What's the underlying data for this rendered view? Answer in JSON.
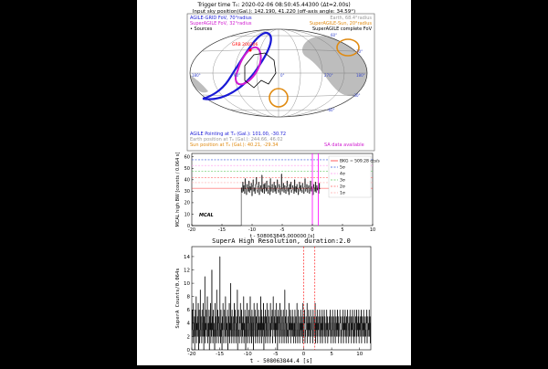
{
  "header": {
    "line1": "Trigger time T₀: 2020-02-06 08:50:45.44300 (Δt=2.00s)",
    "line2": "Input sky position(Gal.): 142.190, 41.220 (off-axis angle: 34.59°)"
  },
  "skymap": {
    "legend_left": [
      {
        "text": "AGILE-GRID FoV, 70°radius",
        "color": "#1a1ad6"
      },
      {
        "text": "SuperAGILE FoV, 32°radius",
        "color": "#d01ad0"
      },
      {
        "text": "• Sources",
        "color": "#000000"
      }
    ],
    "legend_right": [
      {
        "text": "Earth, 68.4°radius",
        "color": "#999999"
      },
      {
        "text": "SuperAGILE-Sun, 20°radius",
        "color": "#e08a10"
      },
      {
        "text": "SuperAGILE complete FoV",
        "color": "#000000"
      }
    ],
    "source_label": "GRB 200206",
    "grid_labels": [
      "180°",
      "90°",
      "0°",
      "270°",
      "180°",
      "30°",
      "60°",
      "-30°",
      "-60°"
    ],
    "info": [
      {
        "text": "AGILE Pointing at T₀ (Gal.): 101.00, -30.72",
        "color": "#1a1ad6"
      },
      {
        "text": "Earth position at T₀ (Gal.): 244.66, 46.02",
        "color": "#999999"
      },
      {
        "text": "Sun position at T₀ (Gal.): 40.21, -29.34",
        "color": "#e08a10"
      }
    ],
    "sa_note": "SA data available",
    "colors": {
      "agile": "#1a1ad6",
      "superagile": "#d01ad0",
      "earth": "#aaaaaa",
      "sun": "#e08a10",
      "source": "#ff0000"
    }
  },
  "chart_data": [
    {
      "type": "line",
      "title": "",
      "xlabel": "t - 508063845.000000 [s]",
      "ylabel": "MCAL high BW [counts / 0.064 s]",
      "xlim": [
        -20,
        10
      ],
      "ylim": [
        0,
        63
      ],
      "xticks": [
        -20,
        -15,
        -10,
        -5,
        0,
        5,
        10
      ],
      "yticks": [
        0,
        10,
        20,
        30,
        40,
        50,
        60
      ],
      "panel_label": "MCAL",
      "data_start": -11.8,
      "data_end": 1.3,
      "bkg_level": 32.6,
      "legend": [
        {
          "label": "BKG = 509.28 cts/s",
          "color": "#ff3333",
          "level": 32.6
        },
        {
          "label": "5σ",
          "color": "#3355dd",
          "level": 57.5
        },
        {
          "label": "4σ",
          "color": "#ff99ee",
          "level": 52.5
        },
        {
          "label": "3σ",
          "color": "#66cc66",
          "level": 47.5
        },
        {
          "label": "2σ",
          "color": "#ff6666",
          "level": 42.0
        },
        {
          "label": "1σ",
          "color": "#ffaaaa",
          "level": 37.5
        }
      ],
      "marker_lines": [
        0,
        1
      ],
      "marker_color": "#ff00ff",
      "series": [
        {
          "values": [
            33,
            29,
            38,
            30,
            35,
            28,
            41,
            32,
            27,
            36,
            33,
            30,
            39,
            29,
            34,
            31,
            37,
            26,
            35,
            40,
            30,
            33,
            28,
            36,
            42,
            31,
            29,
            34,
            38,
            27,
            33,
            35,
            30,
            44,
            29,
            32,
            36,
            28,
            37,
            33,
            30,
            39,
            31,
            28,
            35,
            34,
            27,
            41,
            30,
            33,
            36,
            29,
            32,
            38,
            30,
            35,
            28,
            33,
            40,
            31,
            29,
            36,
            34,
            27,
            32,
            45,
            30,
            33,
            37,
            29,
            35,
            31,
            28,
            34,
            39,
            30,
            33,
            27,
            36,
            32,
            38,
            29,
            31,
            35,
            33,
            28,
            40,
            30,
            34,
            29,
            36,
            32,
            27,
            33,
            38,
            30,
            35,
            31,
            29,
            37,
            33,
            28,
            34,
            41,
            30,
            32,
            36,
            29,
            33,
            35,
            28,
            31,
            39,
            30,
            34,
            32,
            27,
            36,
            33,
            30,
            38,
            29,
            35,
            31,
            33,
            28,
            37,
            32
          ]
        }
      ]
    },
    {
      "type": "line",
      "title": "SuperA High Resolution, duration:2.0",
      "xlabel": "t - 508063844.4 [s]",
      "ylabel": "SuperA Counts/0.064s",
      "xlim": [
        -20,
        12
      ],
      "ylim": [
        0,
        15.5
      ],
      "xticks": [
        -20,
        -15,
        -10,
        -5,
        0,
        5,
        10
      ],
      "yticks": [
        0,
        2,
        4,
        6,
        8,
        10,
        12,
        14
      ],
      "marker_lines": [
        0,
        2
      ],
      "marker_color": "#ff0000",
      "series": [
        {
          "values": [
            2,
            6,
            3,
            1,
            7,
            4,
            2,
            5,
            0,
            3,
            6,
            2,
            8,
            1,
            4,
            3,
            5,
            2,
            7,
            0,
            4,
            6,
            1,
            3,
            9,
            2,
            5,
            3,
            1,
            6,
            4,
            2,
            7,
            3,
            0,
            5,
            2,
            11,
            1,
            4,
            3,
            6,
            2,
            5,
            8,
            1,
            3,
            4,
            2,
            6,
            0,
            5,
            3,
            7,
            1,
            4,
            2,
            12,
            3,
            5,
            1,
            6,
            2,
            4,
            3,
            0,
            7,
            2,
            5,
            3,
            1,
            9,
            4,
            2,
            6,
            3,
            1,
            5,
            4,
            2,
            14,
            3,
            1,
            6,
            2,
            4,
            0,
            5,
            3,
            7,
            2,
            1,
            4,
            6,
            3,
            2,
            8,
            1,
            5,
            3,
            4,
            2,
            6,
            0,
            3,
            5,
            2,
            7,
            1,
            4,
            3,
            10,
            2,
            5,
            1,
            6,
            3,
            2,
            4,
            5,
            1,
            7,
            3,
            2,
            6,
            4,
            1,
            3,
            5,
            2,
            9,
            0,
            4,
            6,
            2,
            3,
            1,
            5,
            4,
            7,
            2,
            3,
            6,
            1,
            4,
            2,
            5,
            3,
            8,
            1,
            4,
            2,
            6,
            3,
            0,
            5,
            2,
            4,
            7,
            1,
            3,
            5,
            2,
            6,
            4,
            1,
            3,
            8,
            2,
            5,
            4,
            1,
            6,
            3,
            2,
            5,
            0,
            4,
            7,
            3,
            2,
            6,
            1,
            4,
            5,
            2,
            3,
            7,
            1,
            4,
            2,
            6,
            3,
            5,
            1,
            4,
            2,
            8,
            3,
            6,
            1,
            5,
            2,
            4,
            3,
            7,
            0,
            5,
            2,
            4,
            6,
            1,
            3,
            5,
            2,
            7,
            4,
            1,
            3,
            6,
            2,
            5,
            4,
            3,
            1,
            7,
            2,
            4,
            5,
            3,
            6,
            1,
            2,
            8,
            4,
            3,
            5,
            2,
            6,
            1,
            4,
            3,
            7,
            2,
            5,
            0,
            4,
            6,
            3,
            2,
            5,
            1,
            7,
            4,
            3,
            2,
            6,
            4,
            1,
            5,
            3,
            2,
            6,
            4,
            1,
            3,
            9,
            2,
            5,
            4,
            1,
            6,
            3,
            2,
            4,
            5,
            1,
            3,
            7,
            2,
            4,
            3,
            6,
            1,
            5,
            2,
            4,
            3,
            6,
            2,
            5,
            1,
            3,
            4,
            2,
            6,
            3,
            1,
            5,
            4,
            2,
            7,
            3,
            1,
            4,
            6,
            2,
            3,
            5,
            1,
            4,
            2,
            6,
            3,
            5,
            2,
            4,
            1,
            7,
            3,
            2,
            5,
            4,
            6,
            1,
            3,
            2,
            5,
            4,
            3,
            7,
            1,
            4,
            2,
            6,
            3,
            5,
            2,
            4,
            1,
            6,
            3,
            2,
            5,
            4,
            3,
            1,
            6,
            2,
            4,
            5,
            3,
            2,
            7,
            1,
            4,
            3,
            5,
            2,
            6,
            1,
            4,
            3,
            5,
            2,
            4,
            6,
            3,
            1,
            5,
            2,
            4,
            3,
            6,
            1,
            5,
            2,
            3,
            4,
            6,
            2,
            5,
            1,
            3,
            4,
            2,
            6,
            3,
            5,
            1,
            4,
            2,
            3,
            5,
            4,
            2,
            6,
            3,
            1,
            4,
            5,
            2,
            3,
            6,
            4,
            1,
            5,
            3,
            2,
            4,
            6,
            1,
            3,
            5,
            2,
            4,
            3,
            6,
            2,
            5,
            1,
            4,
            3,
            2,
            6,
            4,
            5,
            1,
            3,
            2,
            4,
            5,
            3,
            6,
            1,
            4,
            2,
            5,
            3,
            6,
            2,
            4,
            1,
            5,
            3,
            2,
            6,
            4,
            3,
            1,
            5,
            2,
            4,
            6,
            3,
            2,
            5,
            1,
            4,
            3,
            6,
            2,
            5,
            4,
            1,
            3,
            6,
            2,
            4,
            5,
            3,
            1,
            6,
            2,
            4,
            3,
            5,
            2,
            6,
            1,
            4,
            3,
            5,
            2,
            4,
            6,
            1,
            3,
            5,
            2,
            4,
            3,
            6,
            2,
            5,
            1,
            4,
            3,
            2,
            5,
            4,
            6,
            1,
            3,
            5,
            2,
            4,
            3,
            6,
            2,
            5,
            1,
            4
          ]
        }
      ]
    }
  ]
}
